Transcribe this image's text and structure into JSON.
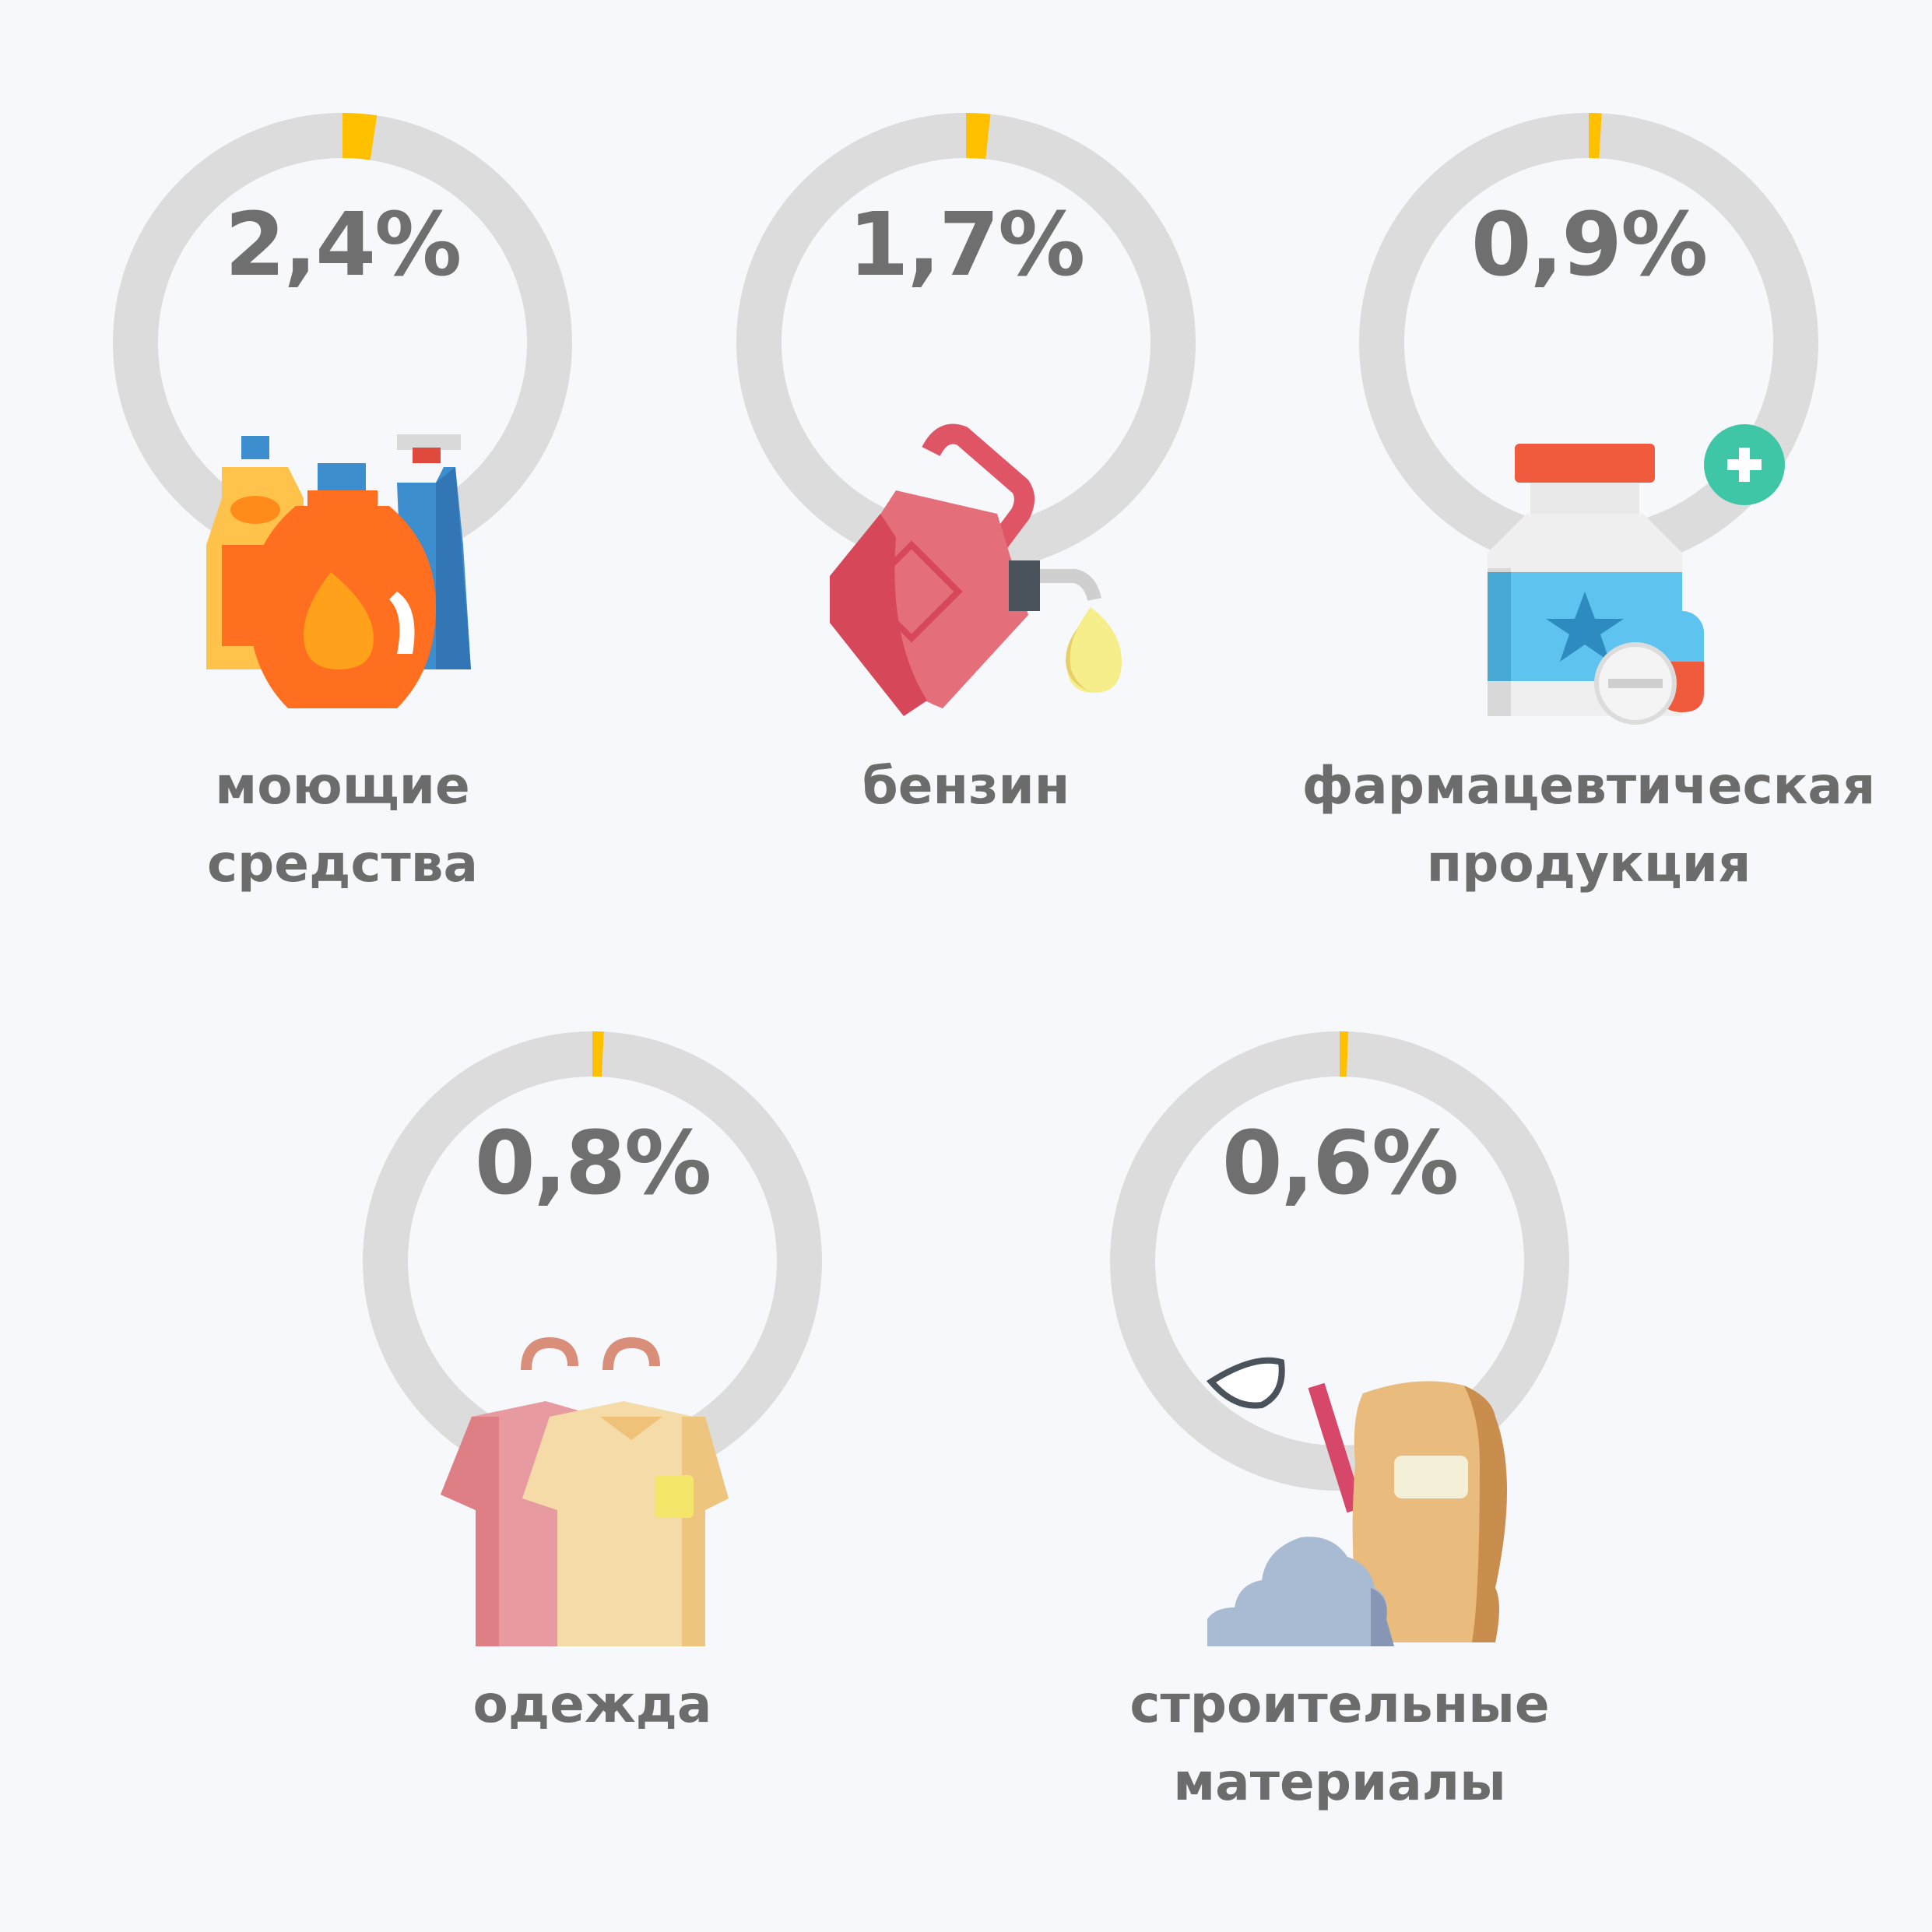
{
  "chart_data": {
    "type": "pie",
    "title": "",
    "items": [
      {
        "value": 2.4,
        "label": "2,4%",
        "category_lines": [
          "моющие",
          "средства"
        ],
        "icon": "cleaning-products-icon"
      },
      {
        "value": 1.7,
        "label": "1,7%",
        "category_lines": [
          "бензин"
        ],
        "icon": "fuel-canister-icon"
      },
      {
        "value": 0.9,
        "label": "0,9%",
        "category_lines": [
          "фармацевтическая",
          "продукция"
        ],
        "icon": "medicine-bottle-icon"
      },
      {
        "value": 0.8,
        "label": "0,8%",
        "category_lines": [
          "одежда"
        ],
        "icon": "clothes-icon"
      },
      {
        "value": 0.6,
        "label": "0,6%",
        "category_lines": [
          "строительные",
          "материалы"
        ],
        "icon": "cement-bag-icon"
      }
    ],
    "max": 100
  },
  "colors": {
    "ring": "#dcdcdc",
    "accent": "#ffc000",
    "text": "#6f6f6f",
    "background": "#f7f8fb"
  }
}
